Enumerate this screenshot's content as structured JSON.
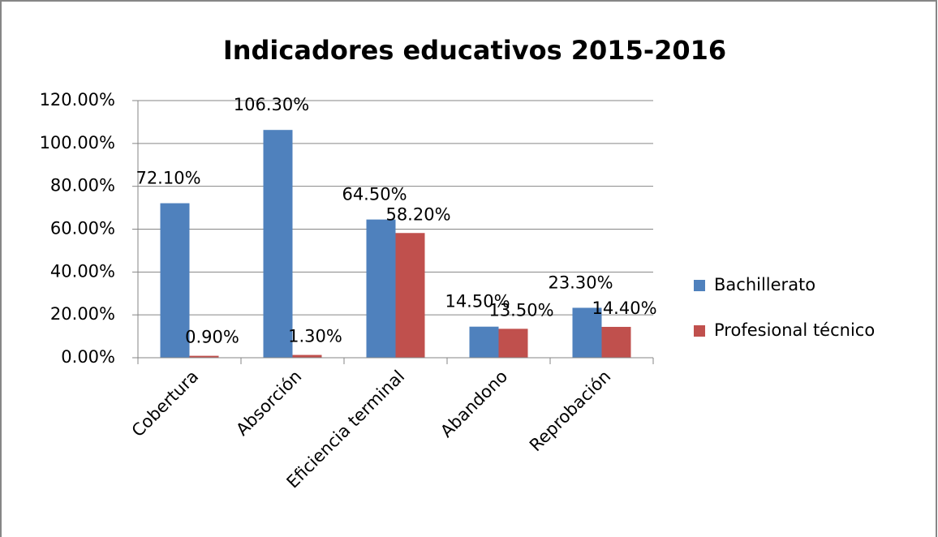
{
  "chart_data": {
    "type": "bar",
    "title": "Indicadores educativos 2015-2016",
    "categories": [
      "Cobertura",
      "Absorción",
      "Eficiencia terminal",
      "Abandono",
      "Reprobación"
    ],
    "series": [
      {
        "name": "Bachillerato",
        "color": "#4f81bd",
        "values": [
          72.1,
          106.3,
          64.5,
          14.5,
          23.3
        ],
        "value_labels": [
          "72.10%",
          "106.30%",
          "64.50%",
          "14.50%",
          "23.30%"
        ]
      },
      {
        "name": "Profesional técnico",
        "color": "#c0504d",
        "values": [
          0.9,
          1.3,
          58.2,
          13.5,
          14.4
        ],
        "value_labels": [
          "0.90%",
          "1.30%",
          "58.20%",
          "13.50%",
          "14.40%"
        ]
      }
    ],
    "ylim": [
      0,
      120
    ],
    "yticks": [
      {
        "value": 0,
        "label": "0.00%"
      },
      {
        "value": 20,
        "label": "20.00%"
      },
      {
        "value": 40,
        "label": "40.00%"
      },
      {
        "value": 60,
        "label": "60.00%"
      },
      {
        "value": 80,
        "label": "80.00%"
      },
      {
        "value": 100,
        "label": "100.00%"
      },
      {
        "value": 120,
        "label": "120.00%"
      }
    ],
    "grid": true,
    "legend": "right"
  }
}
